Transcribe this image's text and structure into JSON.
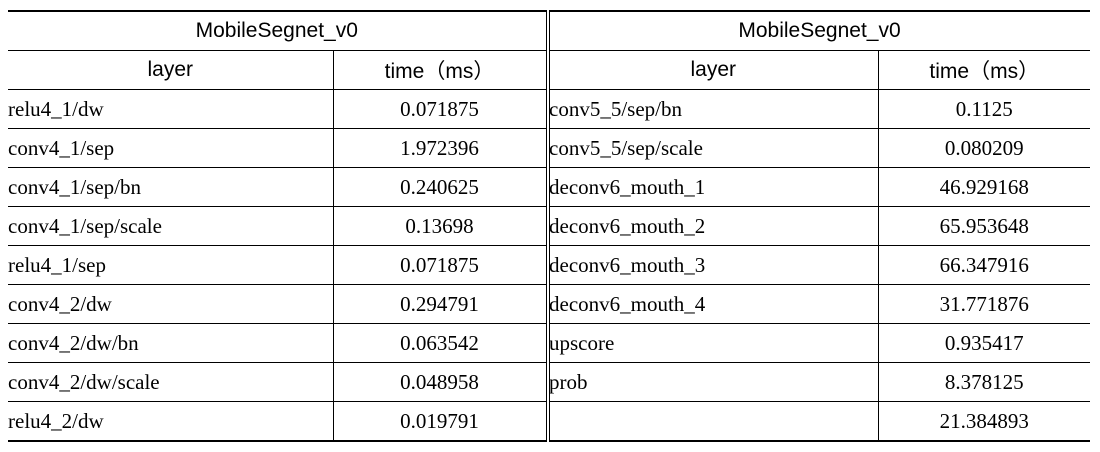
{
  "left": {
    "title": "MobileSegnet_v0",
    "col_layer": "layer",
    "col_time": "time（ms）",
    "rows": [
      {
        "layer": "relu4_1/dw",
        "time": "0.071875"
      },
      {
        "layer": "conv4_1/sep",
        "time": "1.972396"
      },
      {
        "layer": "conv4_1/sep/bn",
        "time": "0.240625"
      },
      {
        "layer": "conv4_1/sep/scale",
        "time": "0.13698"
      },
      {
        "layer": "relu4_1/sep",
        "time": "0.071875"
      },
      {
        "layer": "conv4_2/dw",
        "time": "0.294791"
      },
      {
        "layer": "conv4_2/dw/bn",
        "time": "0.063542"
      },
      {
        "layer": "conv4_2/dw/scale",
        "time": "0.048958"
      },
      {
        "layer": "relu4_2/dw",
        "time": "0.019791"
      }
    ]
  },
  "right": {
    "title": "MobileSegnet_v0",
    "col_layer": "layer",
    "col_time": "time（ms）",
    "rows": [
      {
        "layer": "conv5_5/sep/bn",
        "time": "0.1125"
      },
      {
        "layer": "conv5_5/sep/scale",
        "time": "0.080209"
      },
      {
        "layer": "deconv6_mouth_1",
        "time": "46.929168"
      },
      {
        "layer": "deconv6_mouth_2",
        "time": "65.953648"
      },
      {
        "layer": "deconv6_mouth_3",
        "time": "66.347916"
      },
      {
        "layer": "deconv6_mouth_4",
        "time": "31.771876"
      },
      {
        "layer": "upscore",
        "time": "0.935417"
      },
      {
        "layer": "prob",
        "time": "8.378125"
      },
      {
        "layer": "",
        "time": "21.384893"
      }
    ]
  }
}
